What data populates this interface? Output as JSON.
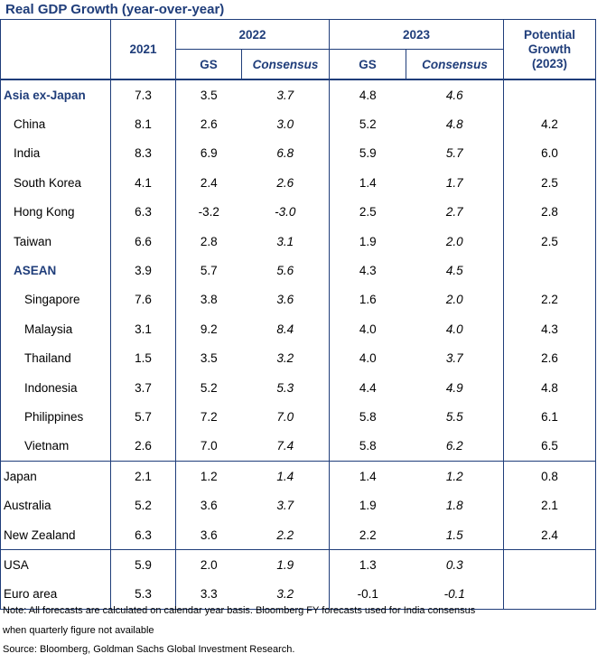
{
  "title": "Real GDP Growth (year-over-year)",
  "headers": {
    "y2021": "2021",
    "y2022": "2022",
    "y2023": "2023",
    "potential": [
      "Potential",
      "Growth",
      "(2023)"
    ],
    "gs": "GS",
    "consensus": "Consensus"
  },
  "rows": [
    {
      "name": "Asia ex-Japan",
      "v2021": "7.3",
      "gs2022": "3.5",
      "cons2022": "3.7",
      "gs2023": "4.8",
      "cons2023": "4.6",
      "potential": ""
    },
    {
      "name": "China",
      "v2021": "8.1",
      "gs2022": "2.6",
      "cons2022": "3.0",
      "gs2023": "5.2",
      "cons2023": "4.8",
      "potential": "4.2"
    },
    {
      "name": "India",
      "v2021": "8.3",
      "gs2022": "6.9",
      "cons2022": "6.8",
      "gs2023": "5.9",
      "cons2023": "5.7",
      "potential": "6.0"
    },
    {
      "name": "South Korea",
      "v2021": "4.1",
      "gs2022": "2.4",
      "cons2022": "2.6",
      "gs2023": "1.4",
      "cons2023": "1.7",
      "potential": "2.5"
    },
    {
      "name": "Hong Kong",
      "v2021": "6.3",
      "gs2022": "-3.2",
      "cons2022": "-3.0",
      "gs2023": "2.5",
      "cons2023": "2.7",
      "potential": "2.8"
    },
    {
      "name": "Taiwan",
      "v2021": "6.6",
      "gs2022": "2.8",
      "cons2022": "3.1",
      "gs2023": "1.9",
      "cons2023": "2.0",
      "potential": "2.5"
    },
    {
      "name": "ASEAN",
      "v2021": "3.9",
      "gs2022": "5.7",
      "cons2022": "5.6",
      "gs2023": "4.3",
      "cons2023": "4.5",
      "potential": ""
    },
    {
      "name": "Singapore",
      "v2021": "7.6",
      "gs2022": "3.8",
      "cons2022": "3.6",
      "gs2023": "1.6",
      "cons2023": "2.0",
      "potential": "2.2"
    },
    {
      "name": "Malaysia",
      "v2021": "3.1",
      "gs2022": "9.2",
      "cons2022": "8.4",
      "gs2023": "4.0",
      "cons2023": "4.0",
      "potential": "4.3"
    },
    {
      "name": "Thailand",
      "v2021": "1.5",
      "gs2022": "3.5",
      "cons2022": "3.2",
      "gs2023": "4.0",
      "cons2023": "3.7",
      "potential": "2.6"
    },
    {
      "name": "Indonesia",
      "v2021": "3.7",
      "gs2022": "5.2",
      "cons2022": "5.3",
      "gs2023": "4.4",
      "cons2023": "4.9",
      "potential": "4.8"
    },
    {
      "name": "Philippines",
      "v2021": "5.7",
      "gs2022": "7.2",
      "cons2022": "7.0",
      "gs2023": "5.8",
      "cons2023": "5.5",
      "potential": "6.1"
    },
    {
      "name": "Vietnam",
      "v2021": "2.6",
      "gs2022": "7.0",
      "cons2022": "7.4",
      "gs2023": "5.8",
      "cons2023": "6.2",
      "potential": "6.5"
    },
    {
      "name": "Japan",
      "v2021": "2.1",
      "gs2022": "1.2",
      "cons2022": "1.4",
      "gs2023": "1.4",
      "cons2023": "1.2",
      "potential": "0.8"
    },
    {
      "name": "Australia",
      "v2021": "5.2",
      "gs2022": "3.6",
      "cons2022": "3.7",
      "gs2023": "1.9",
      "cons2023": "1.8",
      "potential": "2.1"
    },
    {
      "name": "New Zealand",
      "v2021": "6.3",
      "gs2022": "3.6",
      "cons2022": "2.2",
      "gs2023": "2.2",
      "cons2023": "1.5",
      "potential": "2.4"
    },
    {
      "name": "USA",
      "v2021": "5.9",
      "gs2022": "2.0",
      "cons2022": "1.9",
      "gs2023": "1.3",
      "cons2023": "0.3",
      "potential": ""
    },
    {
      "name": "Euro area",
      "v2021": "5.3",
      "gs2022": "3.3",
      "cons2022": "3.2",
      "gs2023": "-0.1",
      "cons2023": "-0.1",
      "potential": ""
    }
  ],
  "notes": {
    "line1": "Note: All forecasts are calculated on calendar year basis. Bloomberg FY forecasts used for India consensus",
    "line2": "when quarterly figure not available",
    "source": "Source: Bloomberg, Goldman Sachs Global Investment Research."
  }
}
